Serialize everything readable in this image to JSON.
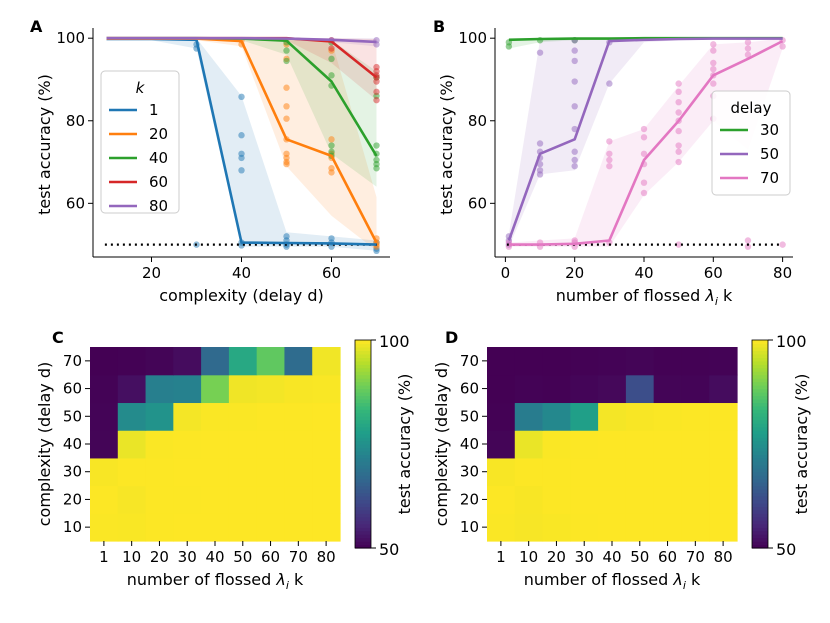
{
  "panels": {
    "A": "A",
    "B": "B",
    "C": "C",
    "D": "D"
  },
  "chart_data": [
    {
      "id": "A",
      "type": "line",
      "xlabel": "complexity (delay d)",
      "ylabel": "test accuracy (%)",
      "xlim": [
        7,
        73
      ],
      "ylim": [
        47,
        101.5
      ],
      "xticks": [
        20,
        40,
        60
      ],
      "yticks": [
        60,
        80,
        100
      ],
      "chance_level": 50,
      "legend": {
        "title": "k",
        "position": "center-left"
      },
      "series": [
        {
          "name": "1",
          "color": "#1f77b4",
          "x": [
            10,
            20,
            30,
            40,
            50,
            60,
            70
          ],
          "y": [
            99.8,
            99.8,
            99.6,
            50.5,
            50.4,
            50.3,
            50.0
          ],
          "upper": [
            100,
            100,
            100,
            86,
            53,
            52,
            51
          ],
          "lower": [
            99.5,
            99.5,
            97.5,
            49.5,
            49.5,
            49.5,
            48.5
          ],
          "scatter": [
            [
              30,
              98.5
            ],
            [
              30,
              97.5
            ],
            [
              30,
              50.0
            ],
            [
              40,
              85.8
            ],
            [
              40,
              76.5
            ],
            [
              40,
              72.0
            ],
            [
              40,
              71.0
            ],
            [
              40,
              68.0
            ],
            [
              40,
              50.5
            ],
            [
              40,
              49.8
            ],
            [
              50,
              52.0
            ],
            [
              50,
              51.0
            ],
            [
              50,
              50.0
            ],
            [
              50,
              49.5
            ],
            [
              60,
              51.5
            ],
            [
              60,
              50.5
            ],
            [
              60,
              49.5
            ],
            [
              70,
              50.5
            ],
            [
              70,
              49.0
            ],
            [
              70,
              48.5
            ]
          ]
        },
        {
          "name": "20",
          "color": "#ff7f0e",
          "x": [
            10,
            20,
            30,
            40,
            50,
            60,
            70
          ],
          "y": [
            99.9,
            99.9,
            99.9,
            99.3,
            75.5,
            71.5,
            50.5
          ],
          "upper": [
            100,
            100,
            100,
            100,
            99.5,
            99.5,
            61.5
          ],
          "lower": [
            99.5,
            99.5,
            99.5,
            98.0,
            69.0,
            57.0,
            48.5
          ],
          "scatter": [
            [
              40,
              99.5
            ],
            [
              40,
              98.5
            ],
            [
              50,
              98.5
            ],
            [
              50,
              95.0
            ],
            [
              50,
              88.0
            ],
            [
              50,
              83.5
            ],
            [
              50,
              80.5
            ],
            [
              50,
              75.5
            ],
            [
              50,
              72.0
            ],
            [
              50,
              71.0
            ],
            [
              50,
              70.0
            ],
            [
              50,
              69.5
            ],
            [
              60,
              97.0
            ],
            [
              60,
              75.5
            ],
            [
              60,
              72.0
            ],
            [
              60,
              71.0
            ],
            [
              60,
              68.5
            ],
            [
              60,
              67.5
            ],
            [
              70,
              51.5
            ],
            [
              70,
              50.5
            ],
            [
              70,
              50.0
            ],
            [
              70,
              49.5
            ]
          ]
        },
        {
          "name": "40",
          "color": "#2ca02c",
          "x": [
            10,
            20,
            30,
            40,
            50,
            60,
            70
          ],
          "y": [
            100,
            100,
            100,
            99.9,
            99.4,
            89.5,
            71.5
          ],
          "upper": [
            100,
            100,
            100,
            100,
            100,
            99.5,
            92.0
          ],
          "lower": [
            99.8,
            99.8,
            99.8,
            99.5,
            96.0,
            72.0,
            64.0
          ],
          "scatter": [
            [
              50,
              99.0
            ],
            [
              50,
              97.0
            ],
            [
              50,
              94.5
            ],
            [
              60,
              99.0
            ],
            [
              60,
              95.0
            ],
            [
              60,
              91.0
            ],
            [
              60,
              88.5
            ],
            [
              60,
              74.0
            ],
            [
              60,
              72.5
            ],
            [
              60,
              71.5
            ],
            [
              70,
              90.5
            ],
            [
              70,
              86.0
            ],
            [
              70,
              74.0
            ],
            [
              70,
              72.0
            ],
            [
              70,
              70.5
            ],
            [
              70,
              69.5
            ],
            [
              70,
              68.5
            ]
          ]
        },
        {
          "name": "60",
          "color": "#d62728",
          "x": [
            10,
            20,
            30,
            40,
            50,
            60,
            70
          ],
          "y": [
            100,
            100,
            100,
            100,
            100,
            99.2,
            90.5
          ],
          "upper": [
            100,
            100,
            100,
            100,
            100,
            100,
            99.8
          ],
          "lower": [
            99.9,
            99.9,
            99.9,
            99.8,
            99.5,
            94.0,
            85.0
          ],
          "scatter": [
            [
              60,
              99.5
            ],
            [
              60,
              97.5
            ],
            [
              70,
              93.0
            ],
            [
              70,
              92.0
            ],
            [
              70,
              91.0
            ],
            [
              70,
              90.5
            ],
            [
              70,
              89.5
            ],
            [
              70,
              87.0
            ],
            [
              70,
              85.0
            ]
          ]
        },
        {
          "name": "80",
          "color": "#9467bd",
          "x": [
            10,
            20,
            30,
            40,
            50,
            60,
            70
          ],
          "y": [
            100,
            100,
            100,
            100,
            99.9,
            99.6,
            99.1
          ],
          "upper": [
            100,
            100,
            100,
            100,
            100,
            100,
            100
          ],
          "lower": [
            99.9,
            99.9,
            99.9,
            99.8,
            99.6,
            99.0,
            98.0
          ],
          "scatter": [
            [
              60,
              99.5
            ],
            [
              70,
              99.5
            ],
            [
              70,
              98.5
            ]
          ]
        }
      ]
    },
    {
      "id": "B",
      "type": "line",
      "xlabel": "number of flossed λ_i k",
      "ylabel": "test accuracy (%)",
      "xlim": [
        -3,
        83
      ],
      "ylim": [
        47,
        101.5
      ],
      "xticks": [
        0,
        20,
        40,
        60,
        80
      ],
      "yticks": [
        60,
        80,
        100
      ],
      "chance_level": 50,
      "legend": {
        "title": "delay",
        "position": "center-right"
      },
      "series": [
        {
          "name": "30",
          "color": "#2ca02c",
          "x": [
            1,
            10,
            20,
            30,
            40,
            50,
            60,
            70,
            80
          ],
          "y": [
            99.6,
            99.8,
            99.9,
            99.9,
            100,
            100,
            100,
            100,
            100
          ],
          "upper": [
            100,
            100,
            100,
            100,
            100,
            100,
            100,
            100,
            100
          ],
          "lower": [
            97.5,
            99.0,
            99.5,
            99.6,
            99.8,
            99.8,
            99.8,
            99.8,
            99.8
          ],
          "scatter": [
            [
              1,
              98.0
            ],
            [
              1,
              99.0
            ],
            [
              10,
              99.5
            ],
            [
              20,
              99.5
            ]
          ]
        },
        {
          "name": "50",
          "color": "#9467bd",
          "x": [
            1,
            10,
            20,
            30,
            40,
            50,
            60,
            70,
            80
          ],
          "y": [
            51.0,
            72.0,
            75.5,
            99.3,
            99.6,
            99.8,
            99.9,
            99.9,
            99.9
          ],
          "upper": [
            52.5,
            99.5,
            99.8,
            100,
            100,
            100,
            100,
            100,
            100
          ],
          "lower": [
            49.5,
            67.0,
            68.0,
            89.0,
            99.0,
            99.5,
            99.6,
            99.6,
            99.6
          ],
          "scatter": [
            [
              1,
              52.0
            ],
            [
              1,
              51.0
            ],
            [
              1,
              50.0
            ],
            [
              10,
              96.5
            ],
            [
              10,
              74.5
            ],
            [
              10,
              72.5
            ],
            [
              10,
              71.0
            ],
            [
              10,
              69.5
            ],
            [
              10,
              68.0
            ],
            [
              10,
              67.0
            ],
            [
              20,
              99.5
            ],
            [
              20,
              97.0
            ],
            [
              20,
              94.5
            ],
            [
              20,
              89.5
            ],
            [
              20,
              83.5
            ],
            [
              20,
              78.0
            ],
            [
              20,
              72.5
            ],
            [
              20,
              70.5
            ],
            [
              20,
              69.0
            ],
            [
              30,
              99.0
            ],
            [
              30,
              89.0
            ]
          ]
        },
        {
          "name": "70",
          "color": "#e377c2",
          "x": [
            1,
            10,
            20,
            30,
            40,
            50,
            60,
            70,
            80
          ],
          "y": [
            50.0,
            50.0,
            50.2,
            51.0,
            70.5,
            80.0,
            91.0,
            95.0,
            99.3
          ],
          "upper": [
            50.5,
            51.0,
            51.5,
            75.0,
            78.0,
            88.5,
            98.5,
            99.0,
            99.9
          ],
          "lower": [
            49.5,
            49.5,
            49.5,
            49.5,
            62.0,
            70.0,
            80.0,
            73.0,
            97.5
          ],
          "scatter": [
            [
              1,
              50.5
            ],
            [
              1,
              49.5
            ],
            [
              10,
              50.5
            ],
            [
              10,
              49.5
            ],
            [
              20,
              51.0
            ],
            [
              20,
              50.5
            ],
            [
              20,
              49.5
            ],
            [
              30,
              75.0
            ],
            [
              30,
              72.0
            ],
            [
              30,
              70.5
            ],
            [
              30,
              69.0
            ],
            [
              30,
              50.5
            ],
            [
              40,
              78.0
            ],
            [
              40,
              76.0
            ],
            [
              40,
              72.0
            ],
            [
              40,
              69.5
            ],
            [
              40,
              65.0
            ],
            [
              40,
              62.5
            ],
            [
              50,
              89.0
            ],
            [
              50,
              87.0
            ],
            [
              50,
              84.5
            ],
            [
              50,
              82.0
            ],
            [
              50,
              80.0
            ],
            [
              50,
              77.5
            ],
            [
              50,
              74.0
            ],
            [
              50,
              72.5
            ],
            [
              50,
              70.0
            ],
            [
              50,
              50.0
            ],
            [
              60,
              98.5
            ],
            [
              60,
              97.0
            ],
            [
              60,
              94.0
            ],
            [
              60,
              92.5
            ],
            [
              60,
              91.0
            ],
            [
              60,
              89.0
            ],
            [
              60,
              86.0
            ],
            [
              60,
              80.5
            ],
            [
              70,
              99.0
            ],
            [
              70,
              97.5
            ],
            [
              70,
              96.0
            ],
            [
              70,
              51.0
            ],
            [
              70,
              49.5
            ],
            [
              80,
              99.5
            ],
            [
              80,
              98.0
            ],
            [
              80,
              50.0
            ]
          ]
        }
      ]
    },
    {
      "id": "C",
      "type": "heatmap",
      "xlabel": "number of flossed λ_i k",
      "ylabel": "complexity (delay d)",
      "x_categories": [
        "1",
        "10",
        "20",
        "30",
        "40",
        "50",
        "60",
        "70",
        "80"
      ],
      "y_categories": [
        "10",
        "20",
        "30",
        "40",
        "50",
        "60",
        "70"
      ],
      "colorbar": {
        "label": "test accuracy (%)",
        "min": 50,
        "max": 100,
        "ticks": [
          50,
          100
        ]
      },
      "values": [
        [
          99.8,
          99.7,
          99.9,
          100,
          100,
          100,
          100,
          100,
          100
        ],
        [
          99.9,
          99.5,
          99.9,
          99.9,
          100,
          100,
          100,
          100,
          100
        ],
        [
          99.6,
          99.9,
          99.9,
          100,
          100,
          100,
          100,
          100,
          100
        ],
        [
          50.5,
          98.5,
          99.8,
          99.9,
          100,
          100,
          100,
          100,
          100
        ],
        [
          50.4,
          74.0,
          75.5,
          99.3,
          99.8,
          99.8,
          99.9,
          99.9,
          100
        ],
        [
          50.3,
          52.0,
          71.5,
          72.0,
          89.5,
          99.0,
          99.2,
          99.6,
          99.7
        ],
        [
          50.0,
          50.1,
          50.5,
          51.5,
          67.0,
          80.0,
          87.5,
          67.5,
          99.1
        ]
      ]
    },
    {
      "id": "D",
      "type": "heatmap",
      "xlabel": "number of flossed λ_i k",
      "ylabel": "complexity (delay d)",
      "x_categories": [
        "1",
        "10",
        "20",
        "30",
        "40",
        "50",
        "60",
        "70",
        "80"
      ],
      "y_categories": [
        "10",
        "20",
        "30",
        "40",
        "50",
        "60",
        "70"
      ],
      "colorbar": {
        "label": "test accuracy (%)",
        "min": 50,
        "max": 100,
        "ticks": [
          50,
          100
        ]
      },
      "values": [
        [
          99.8,
          99.5,
          99.7,
          99.9,
          100,
          100,
          100,
          100,
          100
        ],
        [
          99.9,
          99.6,
          99.9,
          100,
          100,
          100,
          100,
          100,
          100
        ],
        [
          99.6,
          99.9,
          99.9,
          100,
          100,
          100,
          100,
          100,
          100
        ],
        [
          50.5,
          98.5,
          99.8,
          99.9,
          100,
          100,
          100,
          100,
          100
        ],
        [
          50.2,
          71.0,
          73.5,
          78.0,
          99.3,
          99.6,
          99.8,
          99.9,
          99.9
        ],
        [
          50.0,
          50.3,
          50.2,
          50.6,
          51.0,
          62.0,
          50.5,
          50.4,
          51.5
        ],
        [
          50.0,
          50.0,
          50.0,
          50.2,
          50.3,
          50.5,
          50.1,
          50.2,
          50.3
        ]
      ]
    }
  ]
}
